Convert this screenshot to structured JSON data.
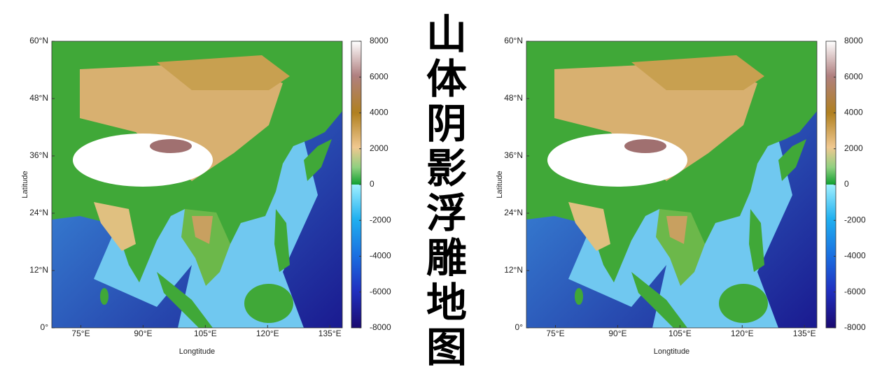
{
  "title": "山体阴影浮雕地图",
  "panels": [
    {
      "x_label": "Longtitude",
      "y_label": "Latitude",
      "xlim": [
        68,
        138
      ],
      "ylim": [
        0,
        60
      ],
      "xticks": [
        {
          "value": 75,
          "label": "75°E"
        },
        {
          "value": 90,
          "label": "90°E"
        },
        {
          "value": 105,
          "label": "105°E"
        },
        {
          "value": 120,
          "label": "120°E"
        },
        {
          "value": 135,
          "label": "135°E"
        }
      ],
      "yticks": [
        {
          "value": 0,
          "label": "0°"
        },
        {
          "value": 12,
          "label": "12°N"
        },
        {
          "value": 24,
          "label": "24°N"
        },
        {
          "value": 36,
          "label": "36°N"
        },
        {
          "value": 48,
          "label": "48°N"
        },
        {
          "value": 60,
          "label": "60°N"
        }
      ],
      "colorbar": {
        "clim": [
          -8000,
          8000
        ],
        "ticks": [
          8000,
          6000,
          4000,
          2000,
          0,
          -2000,
          -4000,
          -6000,
          -8000
        ]
      }
    },
    {
      "x_label": "Longtitude",
      "y_label": "Latitude",
      "xlim": [
        68,
        138
      ],
      "ylim": [
        0,
        60
      ],
      "xticks": [
        {
          "value": 75,
          "label": "75°E"
        },
        {
          "value": 90,
          "label": "90°E"
        },
        {
          "value": 105,
          "label": "105°E"
        },
        {
          "value": 120,
          "label": "120°E"
        },
        {
          "value": 135,
          "label": "135°E"
        }
      ],
      "yticks": [
        {
          "value": 0,
          "label": "0°"
        },
        {
          "value": 12,
          "label": "12°N"
        },
        {
          "value": 24,
          "label": "24°N"
        },
        {
          "value": 36,
          "label": "36°N"
        },
        {
          "value": 48,
          "label": "48°N"
        },
        {
          "value": 60,
          "label": "60°N"
        }
      ],
      "colorbar": {
        "clim": [
          -8000,
          8000
        ],
        "ticks": [
          8000,
          6000,
          4000,
          2000,
          0,
          -2000,
          -4000,
          -6000,
          -8000
        ]
      }
    }
  ]
}
